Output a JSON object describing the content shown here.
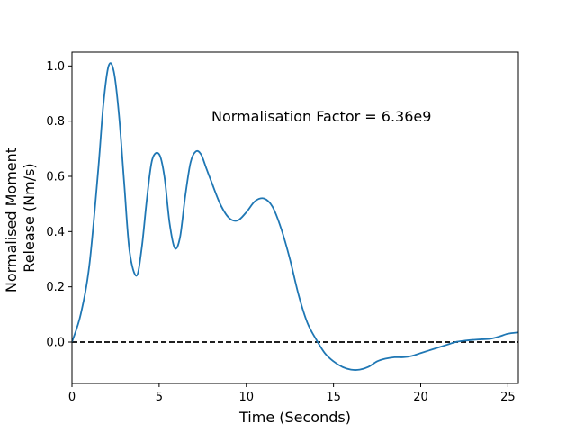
{
  "chart_data": {
    "type": "line",
    "xlabel": "Time (Seconds)",
    "ylabel_lines": [
      "Normalised Moment",
      "Release (Nm/s)"
    ],
    "annotation": "Normalisation Factor = 6.36e9",
    "xlim": [
      0,
      25.6
    ],
    "ylim": [
      -0.15,
      1.05
    ],
    "xticks": [
      0,
      5,
      10,
      15,
      20,
      25
    ],
    "xtick_labels": [
      "0",
      "5",
      "10",
      "15",
      "20",
      "25"
    ],
    "yticks": [
      0.0,
      0.2,
      0.4,
      0.6,
      0.8,
      1.0
    ],
    "ytick_labels": [
      "0.0",
      "0.2",
      "0.4",
      "0.6",
      "0.8",
      "1.0"
    ],
    "grid": false,
    "colors": {
      "series": "#1f77b4",
      "reference": "#000000"
    },
    "series": [
      {
        "x": [
          0,
          0.5,
          1.0,
          1.5,
          1.8,
          2.1,
          2.4,
          2.7,
          3.0,
          3.3,
          3.7,
          4.0,
          4.3,
          4.6,
          5.0,
          5.3,
          5.6,
          5.9,
          6.2,
          6.5,
          6.8,
          7.1,
          7.4,
          7.7,
          8.0,
          8.5,
          9.0,
          9.5,
          10.0,
          10.5,
          11.0,
          11.5,
          12.0,
          12.5,
          13.0,
          13.5,
          14.0,
          14.5,
          15.0,
          15.5,
          16.0,
          16.5,
          17.0,
          17.5,
          18.0,
          18.5,
          19.0,
          19.5,
          20.0,
          20.5,
          21.0,
          21.5,
          22.0,
          22.5,
          23.0,
          23.5,
          24.0,
          24.5,
          25.0,
          25.6
        ],
        "y": [
          0.0,
          0.1,
          0.28,
          0.62,
          0.86,
          1.0,
          0.98,
          0.82,
          0.57,
          0.33,
          0.24,
          0.34,
          0.52,
          0.66,
          0.68,
          0.6,
          0.43,
          0.34,
          0.38,
          0.53,
          0.65,
          0.69,
          0.68,
          0.63,
          0.58,
          0.5,
          0.45,
          0.44,
          0.47,
          0.51,
          0.52,
          0.49,
          0.41,
          0.3,
          0.17,
          0.07,
          0.01,
          -0.04,
          -0.07,
          -0.09,
          -0.1,
          -0.1,
          -0.09,
          -0.07,
          -0.06,
          -0.055,
          -0.055,
          -0.05,
          -0.04,
          -0.03,
          -0.02,
          -0.01,
          0.0,
          0.005,
          0.008,
          0.01,
          0.012,
          0.02,
          0.03,
          0.035
        ]
      }
    ],
    "reference_line": {
      "y": 0.0,
      "style": "dashed"
    }
  }
}
